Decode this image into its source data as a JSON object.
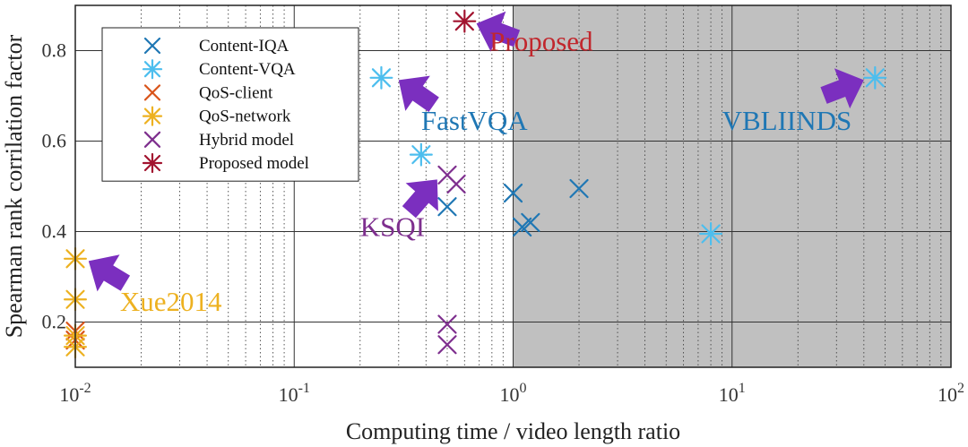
{
  "chart_data": {
    "type": "scatter",
    "title": "",
    "xlabel": "Computing time / video length ratio",
    "ylabel": "Spearman rank corrilation factor",
    "xscale": "log",
    "xlim": [
      0.01,
      100
    ],
    "ylim": [
      0.1,
      0.9
    ],
    "x_ticks": [
      {
        "base": "10",
        "exp": "-2"
      },
      {
        "base": "10",
        "exp": "-1"
      },
      {
        "base": "10",
        "exp": "0"
      },
      {
        "base": "10",
        "exp": "1"
      },
      {
        "base": "10",
        "exp": "2"
      }
    ],
    "y_ticks": [
      "0.2",
      "0.4",
      "0.6",
      "0.8"
    ],
    "y_tick_values": [
      0.2,
      0.4,
      0.6,
      0.8
    ],
    "grid": true,
    "shaded_region": {
      "x_from": 1,
      "x_to": 100,
      "color": "#c0c0c0"
    },
    "legend_position": "top-left",
    "series": [
      {
        "name": "Content-IQA",
        "marker": "x",
        "color": "#1f77b4",
        "points": [
          [
            0.5,
            0.455
          ],
          [
            1.0,
            0.485
          ],
          [
            1.1,
            0.41
          ],
          [
            1.2,
            0.42
          ],
          [
            2.0,
            0.495
          ]
        ]
      },
      {
        "name": "Content-VQA",
        "marker": "asterisk",
        "color": "#4dbeee",
        "points": [
          [
            0.25,
            0.74
          ],
          [
            0.38,
            0.57
          ],
          [
            8.0,
            0.395
          ],
          [
            45,
            0.74
          ]
        ]
      },
      {
        "name": "QoS-client",
        "marker": "x",
        "color": "#d95319",
        "points": [
          [
            0.01,
            0.18
          ],
          [
            0.01,
            0.16
          ]
        ]
      },
      {
        "name": "QoS-network",
        "marker": "asterisk",
        "color": "#edb120",
        "points": [
          [
            0.01,
            0.34
          ],
          [
            0.01,
            0.25
          ],
          [
            0.01,
            0.17
          ],
          [
            0.01,
            0.145
          ]
        ]
      },
      {
        "name": "Hybrid model",
        "marker": "x",
        "color": "#7e2f8e",
        "points": [
          [
            0.5,
            0.525
          ],
          [
            0.55,
            0.505
          ],
          [
            0.5,
            0.195
          ],
          [
            0.5,
            0.15
          ]
        ]
      },
      {
        "name": "Proposed model",
        "marker": "asterisk",
        "color": "#a2142f",
        "points": [
          [
            0.6,
            0.865
          ]
        ]
      }
    ],
    "annotations": [
      {
        "text": "Proposed",
        "color": "#c1272d",
        "x": 0.78,
        "y": 0.8,
        "arrow_tip_x": 0.68,
        "arrow_tip_y": 0.86
      },
      {
        "text": "FastVQA",
        "color": "#1f77b4",
        "x": 0.38,
        "y": 0.625,
        "arrow_tip_x": 0.3,
        "arrow_tip_y": 0.735
      },
      {
        "text": "VBLIINDS",
        "color": "#1f77b4",
        "x": 9.0,
        "y": 0.625,
        "arrow_tip_x": 40,
        "arrow_tip_y": 0.735
      },
      {
        "text": "KSQI",
        "color": "#7e2f8e",
        "x": 0.2,
        "y": 0.39,
        "arrow_tip_x": 0.45,
        "arrow_tip_y": 0.515
      },
      {
        "text": "Xue2014",
        "color": "#edb120",
        "x": 0.016,
        "y": 0.225,
        "arrow_tip_x": 0.0115,
        "arrow_tip_y": 0.335
      }
    ]
  }
}
